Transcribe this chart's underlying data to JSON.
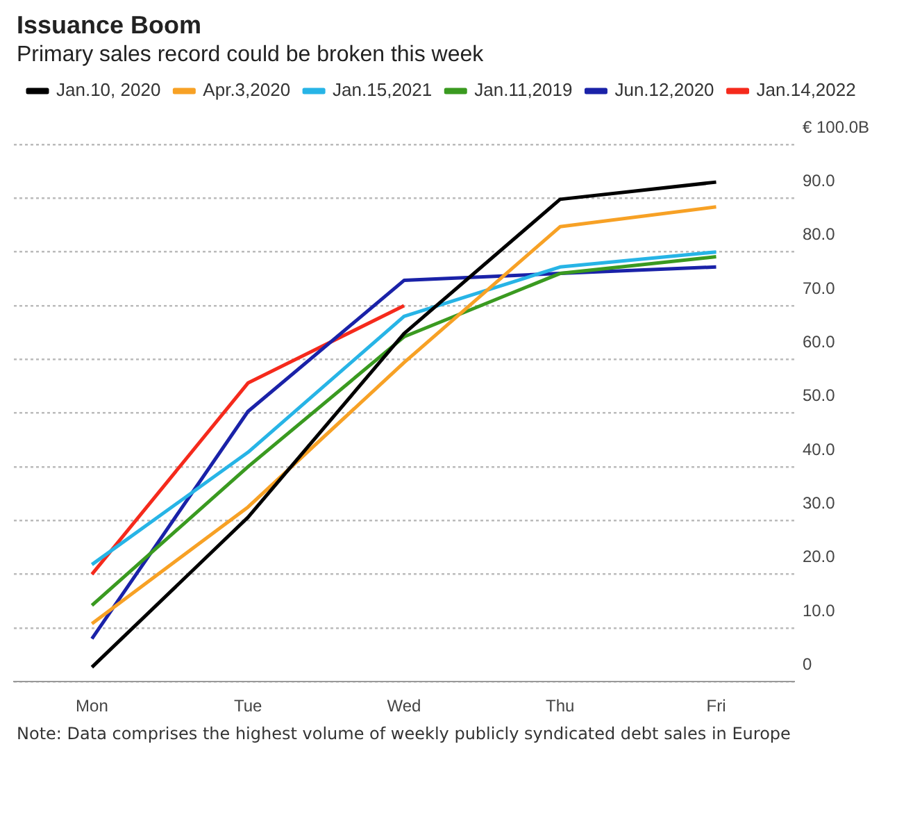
{
  "chart_data": {
    "type": "line",
    "title": "Issuance Boom",
    "subtitle": "Primary sales record could be broken this week",
    "categories": [
      "Mon",
      "Tue",
      "Wed",
      "Thu",
      "Fri"
    ],
    "series": [
      {
        "name": "Jan.10, 2020",
        "color": "#000000",
        "values": [
          2.7,
          30.6,
          64.8,
          89.8,
          93
        ]
      },
      {
        "name": "Apr.3,2020",
        "color": "#f7a125",
        "values": [
          10.8,
          32.5,
          59.4,
          84.7,
          88.4
        ]
      },
      {
        "name": "Jan.15,2021",
        "color": "#27b4e6",
        "values": [
          21.8,
          42.7,
          68,
          77.2,
          80
        ]
      },
      {
        "name": "Jan.11,2019",
        "color": "#3a9a20",
        "values": [
          14.2,
          40,
          64.2,
          76,
          79.1
        ]
      },
      {
        "name": "Jun.12,2020",
        "color": "#1a22a8",
        "values": [
          8,
          50.3,
          74.7,
          76,
          77.2
        ]
      },
      {
        "name": "Jan.14,2022",
        "color": "#f52a1c",
        "values": [
          20,
          55.6,
          70,
          null,
          null
        ]
      }
    ],
    "ylim": [
      0,
      100
    ],
    "yticks": [
      {
        "value": 0,
        "label": "0"
      },
      {
        "value": 10,
        "label": "10.0"
      },
      {
        "value": 20,
        "label": "20.0"
      },
      {
        "value": 30,
        "label": "30.0"
      },
      {
        "value": 40,
        "label": "40.0"
      },
      {
        "value": 50,
        "label": "50.0"
      },
      {
        "value": 60,
        "label": "60.0"
      },
      {
        "value": 70,
        "label": "70.0"
      },
      {
        "value": 80,
        "label": "80.0"
      },
      {
        "value": 90,
        "label": "90.0"
      },
      {
        "value": 100,
        "label": "€ 100.0B"
      }
    ],
    "grid": "y",
    "legend": "top left",
    "marker": "none",
    "line_style": "solid",
    "annotations": [
      "Note: Data comprises the highest volume of weekly publicly syndicated debt sales in Europe"
    ]
  }
}
